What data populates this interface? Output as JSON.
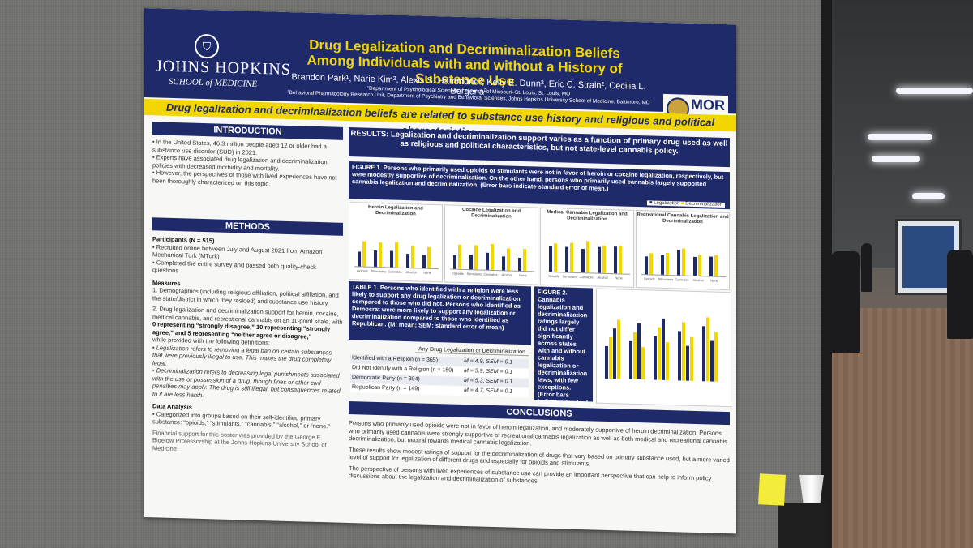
{
  "poster": {
    "institution": "JOHNS HOPKINS",
    "school": "SCHOOL of MEDICINE",
    "title_line1": "Drug Legalization and Decriminalization Beliefs",
    "title_line2": "Among Individuals with and without a History of Substance Use",
    "authors": "Brandon Park¹, Narie Kim², Alexis S. Hammond², Kelly E. Dunn², Eric C. Strain², Cecilia L. Bergeria²",
    "affil1": "¹Department of Psychological Sciences, University of Missouri–St. Louis, St. Louis, MO",
    "affil2": "²Behavioral Pharmacology Research Unit, Department of Psychiatry and Behavioral Sciences, Johns Hopkins University School of Medicine, Baltimore, MD",
    "mor_logo": "MOR",
    "banner": "Drug legalization and decriminalization beliefs are related to substance use history and religious and political characteristics.",
    "intro_header": "INTRODUCTION",
    "intro1": "In the United States, 46.3 million people aged 12 or older had a substance use disorder (SUD) in 2021.",
    "intro2": "Experts have associated drug legalization and decriminalization policies with decreased morbidity and mortality.",
    "intro3": "However, the perspectives of those with lived experiences have not been thoroughly characterized on this topic.",
    "methods_header": "METHODS",
    "participants": "Participants (N = 515)",
    "part1": "Recruited online between July and August 2021 from Amazon Mechanical Turk (MTurk)",
    "part2": "Completed the entire survey and passed both quality-check questions",
    "measures": "Measures",
    "meas1": "Demographics (including religious affiliation, political affiliation, and the state/district in which they resided) and substance use history",
    "meas2": "Drug legalization and decriminalization support for heroin, cocaine, medical cannabis, and recreational cannabis on an 11-point scale, with",
    "scale": "0 representing “strongly disagree,” 10 representing “strongly agree,” and 5 representing “neither agree or disagree,”",
    "defs": "while provided with the following definitions:",
    "def_leg": "Legalization refers to removing a legal ban on certain substances that were previously illegal to use. This makes the drug completely legal.",
    "def_dec": "Decriminalization refers to decreasing legal punishments associated with the use or possession of a drug, though fines or other civil penalties may apply. The drug is still illegal, but consequences related to it are less harsh.",
    "analysis": "Data Analysis",
    "analysis1": "Categorized into groups based on their self-identified primary substance: “opioids,” “stimulants,” “cannabis,” “alcohol,” or “none.”",
    "funding": "Financial support for this poster was provided by the George E. Bigelow Professorship at the Johns Hopkins University School of Medicine",
    "results_header": "RESULTS: Legalization and decriminalization support varies as a function of primary drug used as well as religious and political characteristics, but not state-level cannabis policy.",
    "fig1": "FIGURE 1. Persons who primarily used opioids or stimulants were not in favor of heroin or cocaine legalization, respectively, but were modestly supportive of decriminalization. On the other hand, persons who primarily used cannabis largely supported cannabis legalization and decriminalization.",
    "fig1_note": "(Error bars indicate standard error of mean.)",
    "panel1": "Heroin Legalization and Decriminalization",
    "panel2": "Cocaine Legalization and Decriminalization",
    "panel3": "Medical Cannabis Legalization and Decriminalization",
    "panel4": "Recreational Cannabis Legalization and Decriminalization",
    "legend_leg": "Legalization",
    "legend_dec": "Decriminalization",
    "table1": "TABLE 1. Persons who identified with a religion were less likely to support any drug legalization or decriminalization compared to those who did not. Persons who identified as Democrat were more likely to support any legalization or decriminalization compared to those who identified as Republican.",
    "table1_note": "(M: mean; SEM: standard error of mean)",
    "table_col": "Any Drug Legalization or Decriminalization",
    "rows": [
      {
        "label": "Identified with a Religion (n = 365)",
        "val": "M = 4.9, SEM = 0.1"
      },
      {
        "label": "Did Not Identify with a Religion (n = 150)",
        "val": "M = 5.9, SEM = 0.1"
      },
      {
        "label": "Democratic Party (n = 304)",
        "val": "M = 5.3, SEM = 0.1"
      },
      {
        "label": "Republican Party (n = 149)",
        "val": "M = 4.7, SEM = 0.1"
      }
    ],
    "fig2": "FIGURE 2. Cannabis legalization and decriminalization ratings largely did not differ significantly across states with and without cannabis legalization or decriminalization laws, with few exceptions.",
    "fig2_note": "(Error bars indicate standard error of mean.)",
    "conclusions_header": "CONCLUSIONS",
    "concl1": "Persons who primarily used opioids were not in favor of heroin legalization, and moderately supportive of heroin decriminalization. Persons who primarily used cannabis were strongly supportive of recreational cannabis legalization as well as both medical and recreational cannabis decriminalization, but neutral towards medical cannabis legalization.",
    "concl2": "These results show modest ratings of support for the decriminalization of drugs that vary based on primary substance used, but a more varied level of support for legalization of different drugs and especially for opioids and stimulants.",
    "concl3": "The perspective of persons with lived experiences of substance use can provide an important perspective that can help to inform policy discussions about the legalization and decriminalization of substances."
  },
  "chart_data": [
    {
      "type": "bar",
      "categories": [
        "Opioids",
        "Stimulants",
        "Cannabis",
        "Alcohol",
        "None"
      ],
      "series": [
        {
          "name": "Legalization",
          "values": [
            3.2,
            3.5,
            3.6,
            3.0,
            2.8
          ]
        },
        {
          "name": "Decriminalization",
          "values": [
            5.5,
            5.4,
            5.6,
            4.8,
            4.7
          ]
        }
      ],
      "title": "Heroin Legalization and Decriminalization"
    },
    {
      "type": "bar",
      "categories": [
        "Opioids",
        "Stimulants",
        "Cannabis",
        "Alcohol",
        "None"
      ],
      "series": [
        {
          "name": "Legalization",
          "values": [
            3.1,
            3.3,
            3.7,
            3.0,
            2.9
          ]
        },
        {
          "name": "Decriminalization",
          "values": [
            5.3,
            5.4,
            5.7,
            4.9,
            4.8
          ]
        }
      ],
      "title": "Cocaine Legalization and Decriminalization"
    },
    {
      "type": "bar",
      "categories": [
        "Opioids",
        "Stimulants",
        "Cannabis",
        "Alcohol",
        "None"
      ],
      "series": [
        {
          "name": "Legalization",
          "values": [
            5.5,
            5.6,
            5.2,
            5.8,
            5.9
          ]
        },
        {
          "name": "Decriminalization",
          "values": [
            6.2,
            6.5,
            6.9,
            6.0,
            6.1
          ]
        }
      ],
      "title": "Medical Cannabis Legalization and Decriminalization"
    },
    {
      "type": "bar",
      "categories": [
        "Opioids",
        "Stimulants",
        "Cannabis",
        "Alcohol",
        "None"
      ],
      "series": [
        {
          "name": "Legalization",
          "values": [
            4.0,
            4.3,
            5.5,
            4.1,
            4.2
          ]
        },
        {
          "name": "Decriminalization",
          "values": [
            4.6,
            4.9,
            5.9,
            4.7,
            4.6
          ]
        }
      ],
      "title": "Recreational Cannabis Legalization and Decriminalization"
    }
  ],
  "colors": {
    "navy": "#1f2a6b",
    "gold": "#f2d600"
  }
}
